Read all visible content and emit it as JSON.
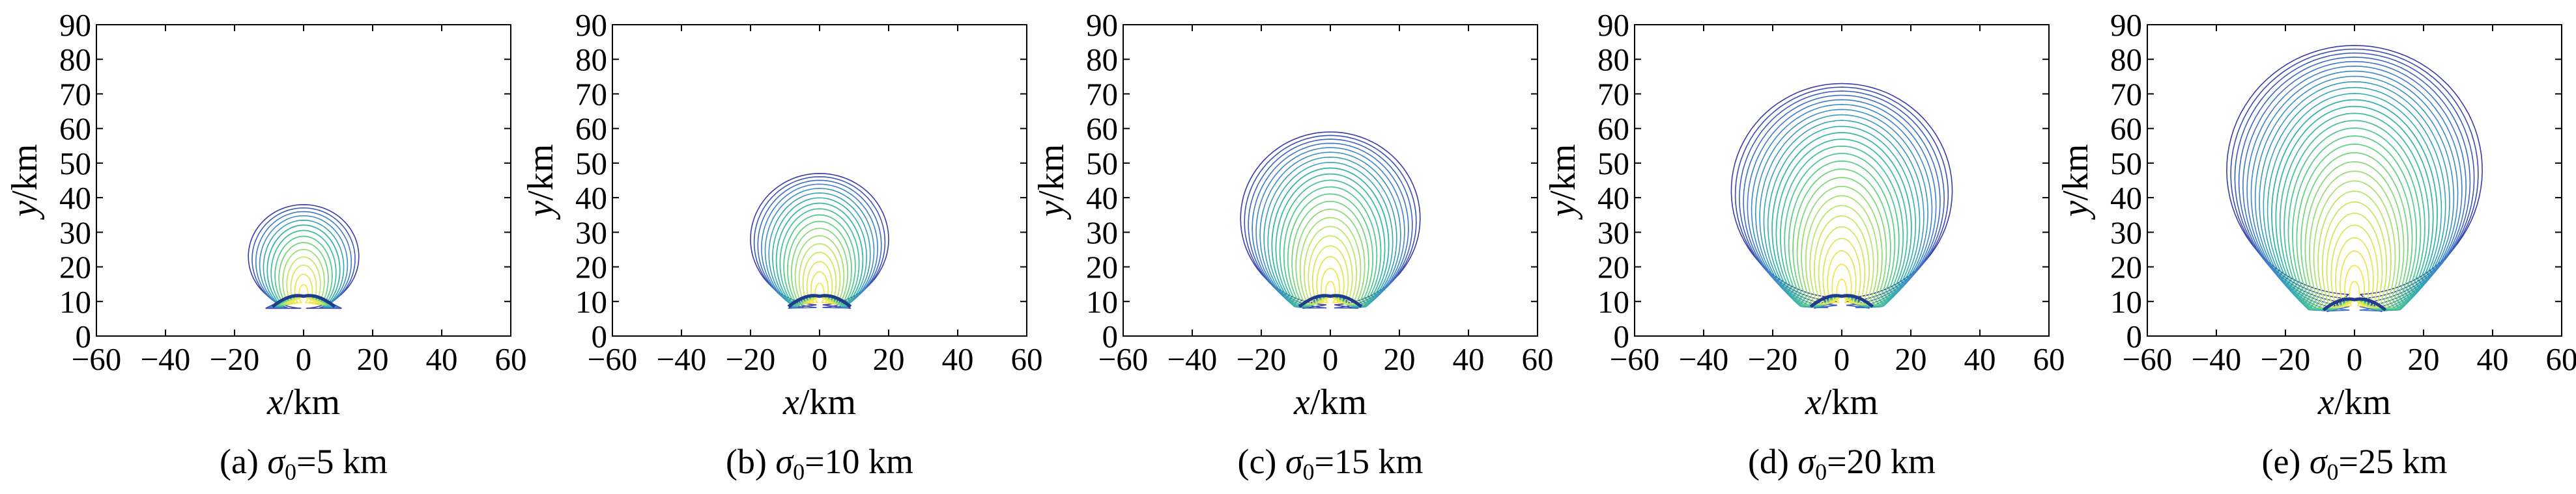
{
  "chart_data": [
    {
      "type": "contour",
      "caption_prefix": "(a) ",
      "caption_symbol": "σ",
      "caption_sub": "0",
      "caption_suffix": "=5 km",
      "xlabel_italic": "x",
      "xlabel_unit": "/km",
      "ylabel_italic": "y",
      "ylabel_unit": "/km",
      "xlim": [
        -60,
        60
      ],
      "ylim": [
        0,
        90
      ],
      "xticks": [
        "−60",
        "−40",
        "−20",
        "0",
        "20",
        "40",
        "60"
      ],
      "yticks": [
        "0",
        "10",
        "20",
        "30",
        "40",
        "50",
        "60",
        "70",
        "80",
        "90"
      ],
      "contour_count": 14,
      "outer_contour": {
        "center_x": 0,
        "center_y": 23,
        "radius_x": 16,
        "top_y": 38,
        "base_y": 8,
        "base_half_width": 11
      },
      "source_y": 11,
      "grid": false,
      "colormap": [
        "#3a3aa8",
        "#3f7fcf",
        "#33b0b0",
        "#5fcf8a",
        "#c9e66b",
        "#f6e84a"
      ]
    },
    {
      "type": "contour",
      "caption_prefix": "(b) ",
      "caption_symbol": "σ",
      "caption_sub": "0",
      "caption_suffix": "=10 km",
      "xlabel_italic": "x",
      "xlabel_unit": "/km",
      "ylabel_italic": "y",
      "ylabel_unit": "/km",
      "xlim": [
        -60,
        60
      ],
      "ylim": [
        0,
        90
      ],
      "xticks": [
        "−60",
        "−40",
        "−20",
        "0",
        "20",
        "40",
        "60"
      ],
      "yticks": [
        "0",
        "10",
        "20",
        "30",
        "40",
        "50",
        "60",
        "70",
        "80",
        "90"
      ],
      "contour_count": 18,
      "outer_contour": {
        "center_x": 0,
        "center_y": 28,
        "radius_x": 20,
        "top_y": 47,
        "base_y": 8,
        "base_half_width": 9
      },
      "source_y": 11,
      "grid": false,
      "colormap": [
        "#3a3aa8",
        "#3f7fcf",
        "#33b0b0",
        "#5fcf8a",
        "#c9e66b",
        "#f6e84a"
      ]
    },
    {
      "type": "contour",
      "caption_prefix": "(c) ",
      "caption_symbol": "σ",
      "caption_sub": "0",
      "caption_suffix": "=15 km",
      "xlabel_italic": "x",
      "xlabel_unit": "/km",
      "ylabel_italic": "y",
      "ylabel_unit": "/km",
      "xlim": [
        -60,
        60
      ],
      "ylim": [
        0,
        90
      ],
      "xticks": [
        "−60",
        "−40",
        "−20",
        "0",
        "20",
        "40",
        "60"
      ],
      "yticks": [
        "0",
        "10",
        "20",
        "30",
        "40",
        "50",
        "60",
        "70",
        "80",
        "90"
      ],
      "contour_count": 22,
      "outer_contour": {
        "center_x": 0,
        "center_y": 34,
        "radius_x": 26,
        "top_y": 59,
        "base_y": 8,
        "base_half_width": 8
      },
      "source_y": 11,
      "grid": false,
      "colormap": [
        "#3a3aa8",
        "#3f7fcf",
        "#33b0b0",
        "#5fcf8a",
        "#c9e66b",
        "#f6e84a"
      ]
    },
    {
      "type": "contour",
      "caption_prefix": "(d) ",
      "caption_symbol": "σ",
      "caption_sub": "0",
      "caption_suffix": "=20 km",
      "xlabel_italic": "x",
      "xlabel_unit": "/km",
      "ylabel_italic": "y",
      "ylabel_unit": "/km",
      "xlim": [
        -60,
        60
      ],
      "ylim": [
        0,
        90
      ],
      "xticks": [
        "−60",
        "−40",
        "−20",
        "0",
        "20",
        "40",
        "60"
      ],
      "yticks": [
        "0",
        "10",
        "20",
        "30",
        "40",
        "50",
        "60",
        "70",
        "80",
        "90"
      ],
      "contour_count": 26,
      "outer_contour": {
        "center_x": 0,
        "center_y": 42,
        "radius_x": 32,
        "top_y": 73,
        "base_y": 8,
        "base_half_width": 8
      },
      "source_y": 11,
      "grid": false,
      "colormap": [
        "#3a3aa8",
        "#3f7fcf",
        "#33b0b0",
        "#5fcf8a",
        "#c9e66b",
        "#f6e84a"
      ]
    },
    {
      "type": "contour",
      "caption_prefix": "(e) ",
      "caption_symbol": "σ",
      "caption_sub": "0",
      "caption_suffix": "=25 km",
      "xlabel_italic": "x",
      "xlabel_unit": "/km",
      "ylabel_italic": "y",
      "ylabel_unit": "/km",
      "xlim": [
        -60,
        60
      ],
      "ylim": [
        0,
        90
      ],
      "xticks": [
        "−60",
        "−40",
        "−20",
        "0",
        "20",
        "40",
        "60"
      ],
      "yticks": [
        "0",
        "10",
        "20",
        "30",
        "40",
        "50",
        "60",
        "70",
        "80",
        "90"
      ],
      "contour_count": 30,
      "outer_contour": {
        "center_x": 0,
        "center_y": 48,
        "radius_x": 37,
        "top_y": 84,
        "base_y": 7,
        "base_half_width": 8
      },
      "source_y": 10,
      "grid": false,
      "colormap": [
        "#3a3aa8",
        "#3f7fcf",
        "#33b0b0",
        "#5fcf8a",
        "#c9e66b",
        "#f6e84a"
      ]
    }
  ]
}
